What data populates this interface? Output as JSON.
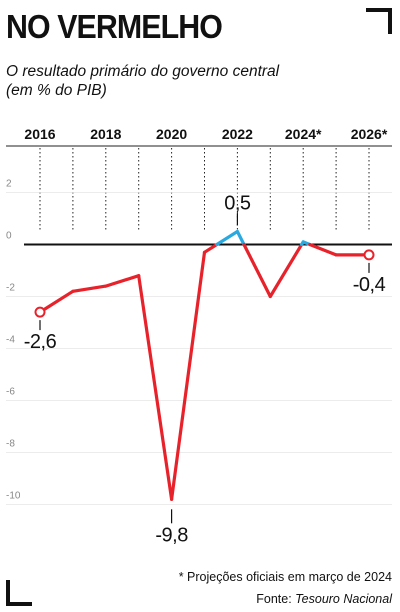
{
  "title": "NO VERMELHO",
  "subtitle_line1": "O resultado primário do governo central",
  "subtitle_line2": "(em % do PIB)",
  "footnote": "* Projeções oficiais em março de 2024",
  "source_label": "Fonte:",
  "source_name": "Tesouro Nacional",
  "colors": {
    "actual": "#e8222b",
    "positive": "#29a9e0",
    "text": "#111111",
    "axis": "#888888"
  },
  "chart_data": {
    "type": "line",
    "title": "NO VERMELHO",
    "ylabel": "(em % do PIB)",
    "xlabel": "",
    "x": [
      2016,
      2017,
      2018,
      2019,
      2020,
      2021,
      2022,
      2023,
      2024,
      2025,
      2026
    ],
    "values": [
      -2.6,
      -1.8,
      -1.6,
      -1.2,
      -9.8,
      -0.3,
      0.5,
      -2.0,
      0.1,
      -0.4,
      -0.4
    ],
    "x_tick_labels": [
      "2016",
      "2018",
      "2020",
      "2022",
      "2024*",
      "2026*"
    ],
    "x_tick_years": [
      2016,
      2018,
      2020,
      2022,
      2024,
      2026
    ],
    "y_ticks": [
      2,
      0,
      -2,
      -4,
      -6,
      -8,
      -10
    ],
    "y_tick_labels": [
      "2",
      "0",
      "-2",
      "-4",
      "-6",
      "-8",
      "-10"
    ],
    "ylim": [
      -10,
      2
    ],
    "annotations": [
      {
        "x": 2016,
        "y": -2.6,
        "text": "-2,6"
      },
      {
        "x": 2020,
        "y": -9.8,
        "text": "-9,8"
      },
      {
        "x": 2022,
        "y": 0.5,
        "text": "0,5"
      },
      {
        "x": 2026,
        "y": -0.4,
        "text": "-0,4"
      }
    ],
    "notes": "Values from 2024 onward are projections (*). Segments above zero drawn in blue, below zero in red.",
    "grid": "vertical dotted lines per year"
  }
}
